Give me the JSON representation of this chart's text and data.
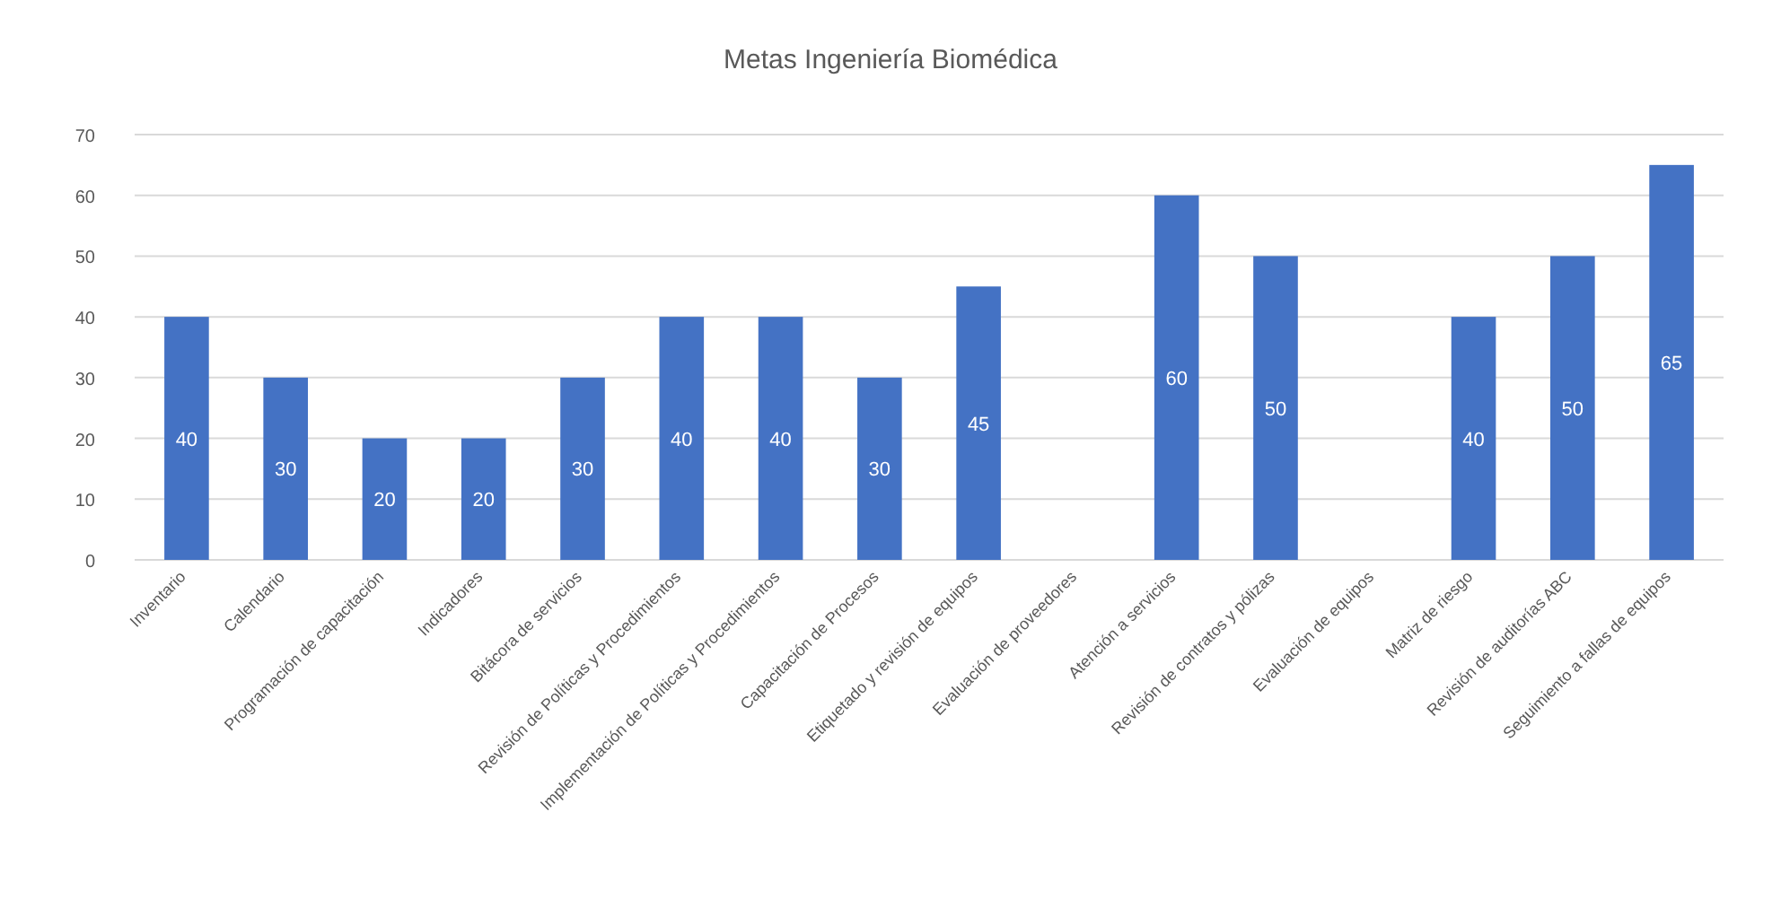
{
  "chart_data": {
    "type": "bar",
    "title": "Metas Ingeniería Biomédica",
    "categories": [
      "Inventario",
      "Calendario",
      "Programación de capacitación",
      "Indicadores",
      "Bitácora de servicios",
      "Revisión de Políticas y Procedimientos",
      "Implementación de Políticas y Procedimientos",
      "Capacitación de Procesos",
      "Etiquetado y revisión de equipos",
      "Evaluación de proveedores",
      "Atención a servicios",
      "Revisión de contratos y pólizas",
      "Evaluación de equipos",
      "Matriz de riesgo",
      "Revisión de auditorías ABC",
      "Seguimiento a fallas de equipos"
    ],
    "values": [
      40,
      30,
      20,
      20,
      30,
      40,
      40,
      30,
      45,
      0,
      60,
      50,
      0,
      40,
      50,
      65
    ],
    "value_labels": [
      "40",
      "30",
      "20",
      "20",
      "30",
      "40",
      "40",
      "30",
      "45",
      null,
      "60",
      "50",
      null,
      "40",
      "50",
      "65"
    ],
    "color": "#4472c4",
    "ylim": [
      0,
      70
    ],
    "yticks": [
      0,
      10,
      20,
      30,
      40,
      50,
      60,
      70
    ],
    "grid": "y"
  }
}
